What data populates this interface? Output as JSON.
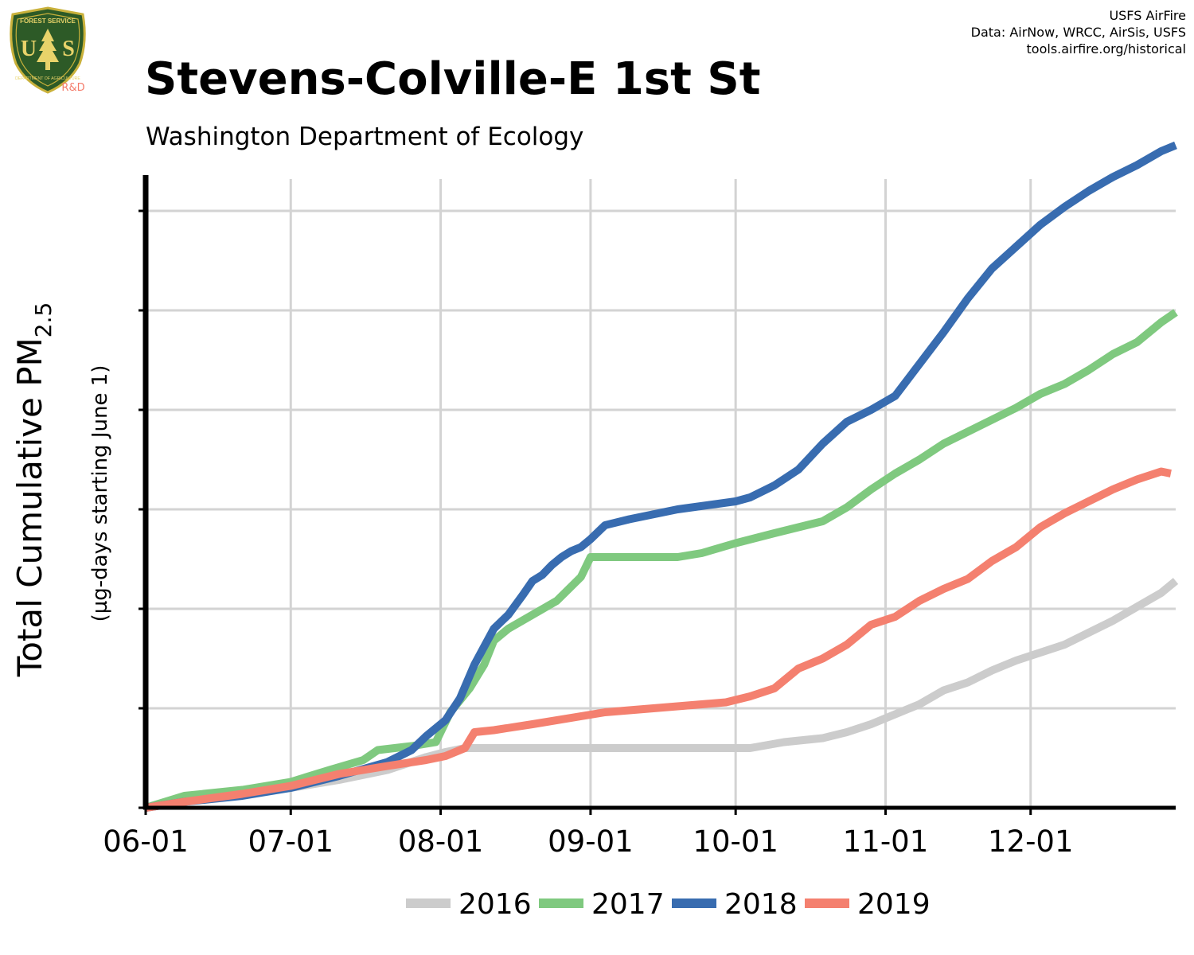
{
  "header": {
    "title": "Stevens-Colville-E 1st St",
    "subtitle": "Washington Department of Ecology",
    "credits": [
      "USFS AirFire",
      "Data: AirNow, WRCC, AirSis, USFS",
      "tools.airfire.org/historical"
    ]
  },
  "logo": {
    "icon": "us-forest-service-shield-icon",
    "lettering": [
      "FOREST SERVICE",
      "U",
      "S",
      "DEPARTMENT OF AGRICULTURE"
    ],
    "badge": "R&D",
    "colors": {
      "shield": "#2d5a27",
      "rim": "#c9b13b",
      "tree": "#e8d36a",
      "badge": "#f47c6b"
    }
  },
  "chart_data": {
    "type": "line",
    "title": "Stevens-Colville-E 1st St",
    "subtitle": "Washington Department of Ecology",
    "ylabel": "Total Cumulative PM",
    "ylabel_subscript": "2.5",
    "ylabel_secondary": "(µg-days starting June 1)",
    "xlabel": "",
    "x_ticks": [
      "06-01",
      "07-01",
      "08-01",
      "09-01",
      "10-01",
      "11-01",
      "12-01"
    ],
    "x_tick_days": [
      0,
      30,
      61,
      92,
      122,
      153,
      183
    ],
    "xlim_days": [
      0,
      213
    ],
    "ylim": [
      0,
      3160
    ],
    "y_ticks": [
      0,
      500,
      1000,
      1500,
      2000,
      2500,
      3000
    ],
    "y_tick_labels_visible": false,
    "grid": true,
    "legend": {
      "placement": "bottom"
    },
    "series": [
      {
        "name": "2016",
        "color": "#cccccc",
        "days": [
          0,
          8,
          20,
          30,
          40,
          50,
          58,
          62,
          66,
          70,
          75,
          90,
          100,
          110,
          122,
          125,
          132,
          140,
          145,
          150,
          155,
          160,
          165,
          170,
          175,
          180,
          185,
          190,
          195,
          200,
          205,
          210,
          213
        ],
        "values": [
          0,
          40,
          70,
          100,
          140,
          190,
          255,
          280,
          300,
          300,
          300,
          300,
          300,
          300,
          300,
          300,
          330,
          350,
          380,
          420,
          470,
          520,
          590,
          630,
          690,
          740,
          780,
          820,
          880,
          940,
          1010,
          1080,
          1140
        ]
      },
      {
        "name": "2017",
        "color": "#7fc97f",
        "days": [
          0,
          8,
          20,
          30,
          38,
          45,
          48,
          55,
          60,
          63,
          67,
          70,
          72,
          75,
          80,
          85,
          90,
          92,
          95,
          100,
          110,
          115,
          122,
          130,
          140,
          145,
          150,
          155,
          160,
          165,
          170,
          175,
          180,
          185,
          190,
          195,
          200,
          205,
          210,
          213
        ],
        "values": [
          0,
          60,
          90,
          130,
          190,
          240,
          290,
          310,
          330,
          480,
          600,
          720,
          840,
          900,
          970,
          1040,
          1160,
          1260,
          1260,
          1260,
          1260,
          1280,
          1330,
          1380,
          1440,
          1510,
          1600,
          1680,
          1750,
          1830,
          1890,
          1950,
          2010,
          2080,
          2130,
          2200,
          2280,
          2340,
          2440,
          2490
        ]
      },
      {
        "name": "2018",
        "color": "#386cb0",
        "days": [
          0,
          8,
          20,
          30,
          40,
          50,
          55,
          58,
          62,
          65,
          68,
          72,
          75,
          78,
          80,
          82,
          84,
          86,
          88,
          90,
          92,
          95,
          100,
          110,
          122,
          125,
          130,
          135,
          140,
          145,
          150,
          155,
          160,
          165,
          170,
          175,
          180,
          185,
          190,
          195,
          200,
          205,
          210,
          213
        ],
        "values": [
          0,
          30,
          60,
          100,
          160,
          230,
          290,
          360,
          440,
          550,
          720,
          900,
          970,
          1070,
          1140,
          1170,
          1220,
          1260,
          1290,
          1310,
          1350,
          1420,
          1450,
          1500,
          1540,
          1560,
          1620,
          1700,
          1830,
          1940,
          2000,
          2070,
          2230,
          2390,
          2560,
          2710,
          2820,
          2930,
          3020,
          3100,
          3170,
          3230,
          3300,
          3330
        ]
      },
      {
        "name": "2019",
        "color": "#f4806f",
        "days": [
          0,
          8,
          20,
          30,
          40,
          50,
          58,
          62,
          66,
          68,
          72,
          80,
          90,
          95,
          100,
          110,
          120,
          125,
          130,
          135,
          140,
          145,
          150,
          155,
          160,
          165,
          170,
          175,
          180,
          185,
          190,
          195,
          200,
          205,
          210,
          212
        ],
        "values": [
          0,
          30,
          70,
          110,
          170,
          210,
          240,
          260,
          300,
          380,
          390,
          420,
          460,
          480,
          490,
          510,
          530,
          560,
          600,
          700,
          750,
          820,
          920,
          960,
          1040,
          1100,
          1150,
          1240,
          1310,
          1410,
          1480,
          1540,
          1600,
          1650,
          1690,
          1680
        ]
      }
    ]
  }
}
